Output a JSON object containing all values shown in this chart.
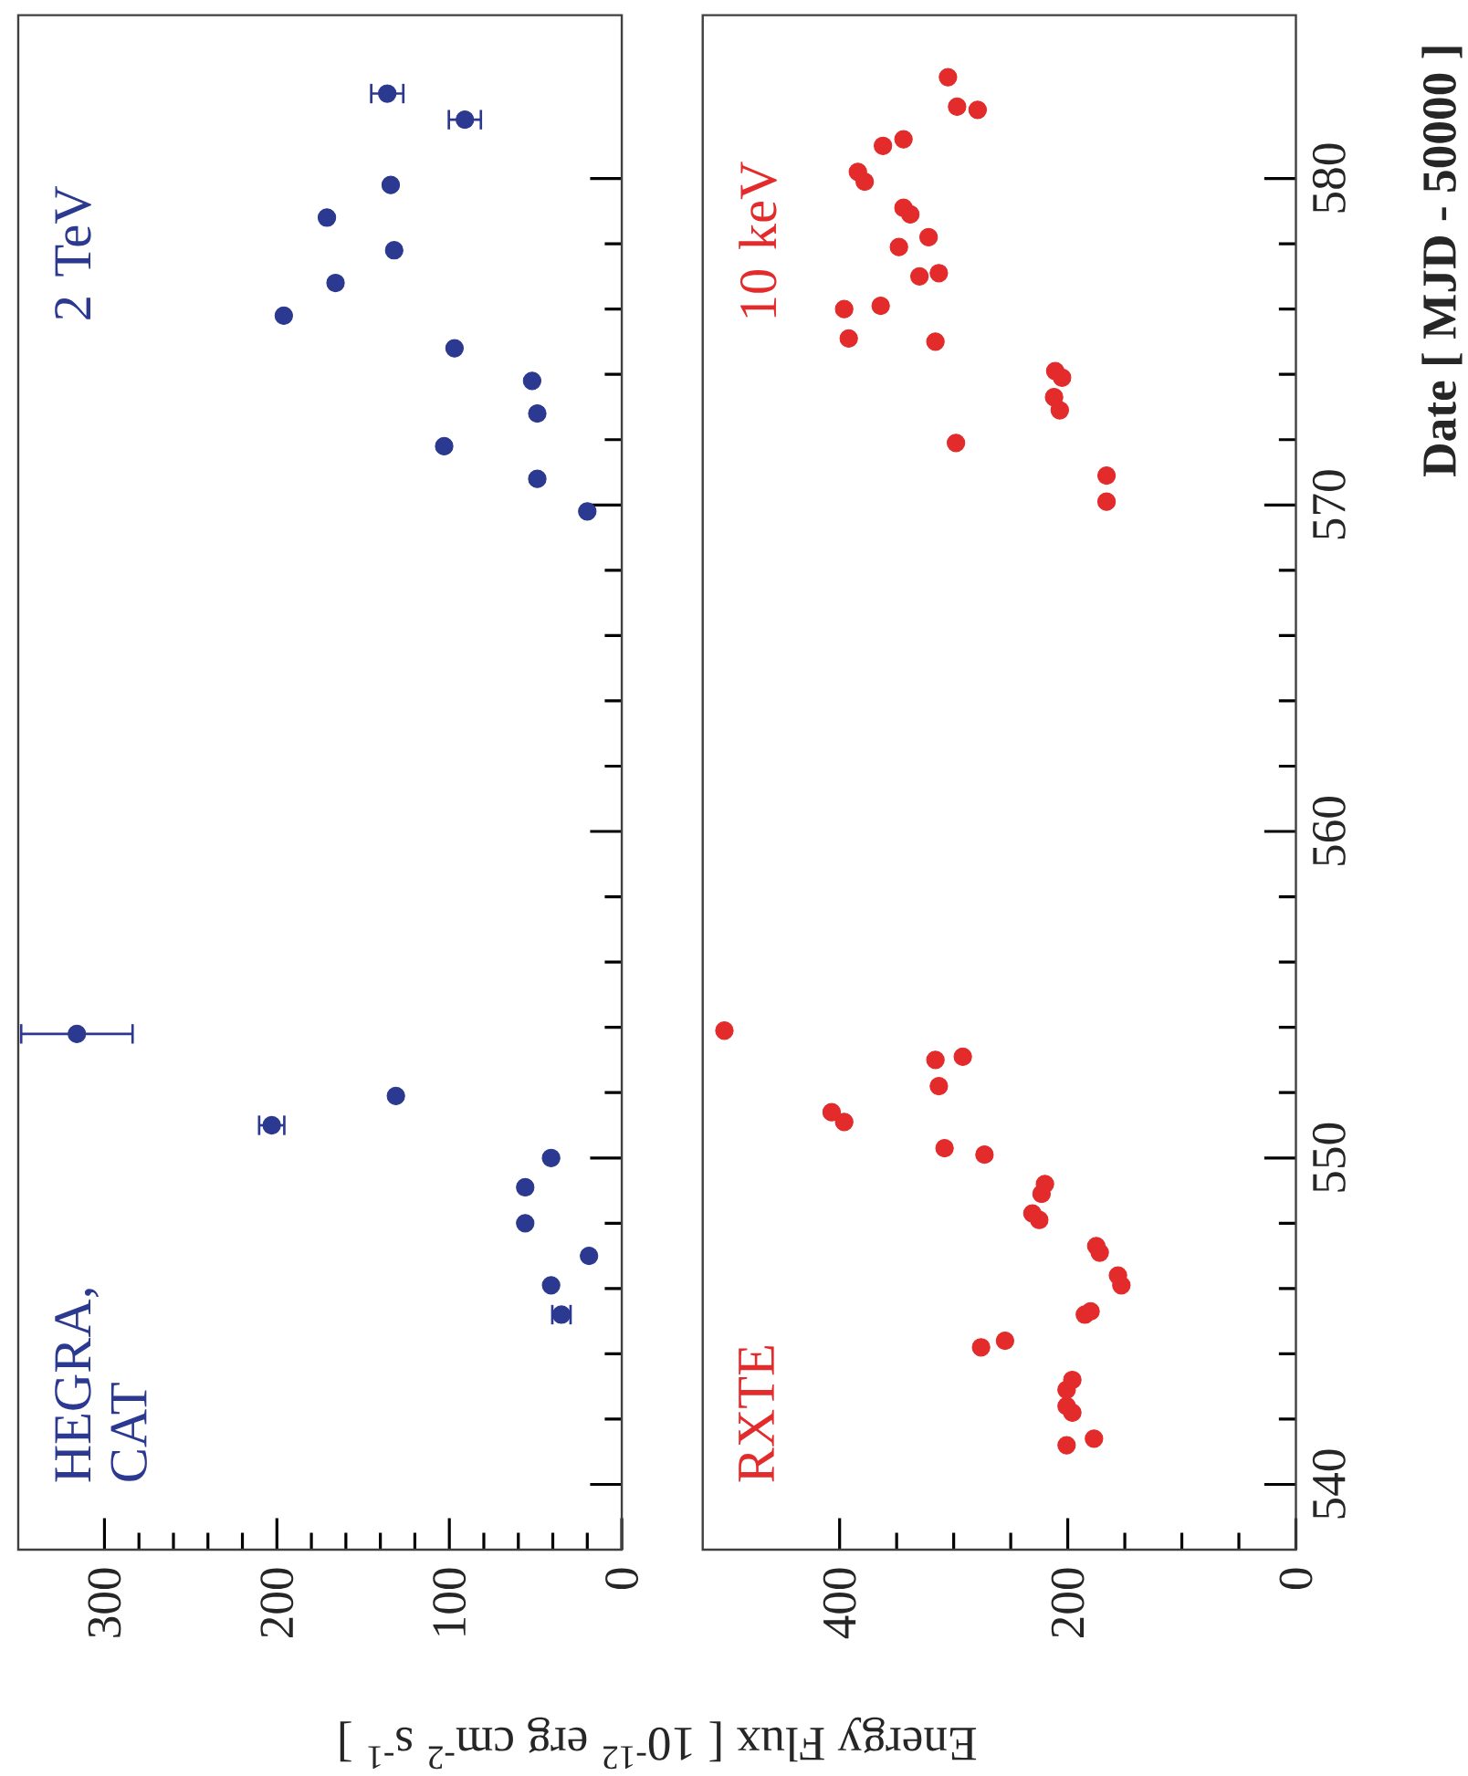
{
  "chart_data": [
    {
      "type": "scatter",
      "xlabel": "Energy Flux [ 10$^{-12}$ erg cm$^{-2}$ s$^{-1}$ ]",
      "annotations": [
        "HEGRA, CAT",
        "2 TeV"
      ],
      "x": [
        35,
        41,
        19,
        56,
        56,
        41,
        203,
        131,
        316,
        20,
        49,
        103,
        49,
        52,
        97,
        196,
        166,
        132,
        171,
        134,
        91,
        136
      ],
      "series": [
        {
          "color": "#2b3990",
          "values": [
            545.2,
            546.1,
            547.0,
            548.0,
            549.1,
            550.0,
            551.0,
            551.9,
            553.8,
            569.8,
            570.8,
            571.8,
            572.8,
            573.8,
            574.8,
            575.8,
            576.8,
            577.8,
            578.8,
            579.8,
            581.8,
            582.6
          ],
          "xerrors": [
            6,
            null,
            null,
            null,
            null,
            null,
            8,
            null,
            33,
            null,
            null,
            null,
            null,
            null,
            null,
            null,
            null,
            null,
            null,
            null,
            10,
            10
          ]
        }
      ],
      "xlim": [
        350,
        0
      ],
      "ylim": [
        538,
        585
      ],
      "xticks": [
        0,
        100,
        200,
        300
      ],
      "yticks": [
        540,
        550,
        560,
        570,
        580
      ],
      "tick_labels": "x",
      "marker": "circle"
    },
    {
      "type": "scatter",
      "ylabel": "Date [ MJD - 50000 ]",
      "annotations": [
        "RXTE",
        "10 keV"
      ],
      "x": [
        201,
        177,
        196,
        201,
        201,
        196,
        276,
        255,
        185,
        180,
        153,
        156,
        172,
        175,
        225,
        231,
        223,
        220,
        273,
        308,
        396,
        407,
        313,
        316,
        292,
        501,
        166,
        166,
        298,
        207,
        212,
        205,
        211,
        316,
        392,
        396,
        364,
        330,
        313,
        348,
        322,
        338,
        344,
        378,
        384,
        362,
        344,
        279,
        297,
        305
      ],
      "series": [
        {
          "color": "#e32b2b",
          "values": [
            541.2,
            541.4,
            542.2,
            542.4,
            542.9,
            543.2,
            544.2,
            544.4,
            545.2,
            545.3,
            546.1,
            546.4,
            547.1,
            547.3,
            548.1,
            548.3,
            548.9,
            549.2,
            550.1,
            550.3,
            551.1,
            551.4,
            552.2,
            553.0,
            553.1,
            553.9,
            570.1,
            570.9,
            571.9,
            572.9,
            573.3,
            573.9,
            574.1,
            575.0,
            575.1,
            576.0,
            576.1,
            577.0,
            577.1,
            577.9,
            578.2,
            578.9,
            579.1,
            579.9,
            580.2,
            581.0,
            581.2,
            582.1,
            582.2,
            583.1
          ]
        }
      ],
      "xlim": [
        520,
        0
      ],
      "ylim": [
        538,
        585
      ],
      "xticks": [
        0,
        200,
        400
      ],
      "yticks": [
        540,
        550,
        560,
        570,
        580
      ],
      "marker": "circle"
    }
  ]
}
